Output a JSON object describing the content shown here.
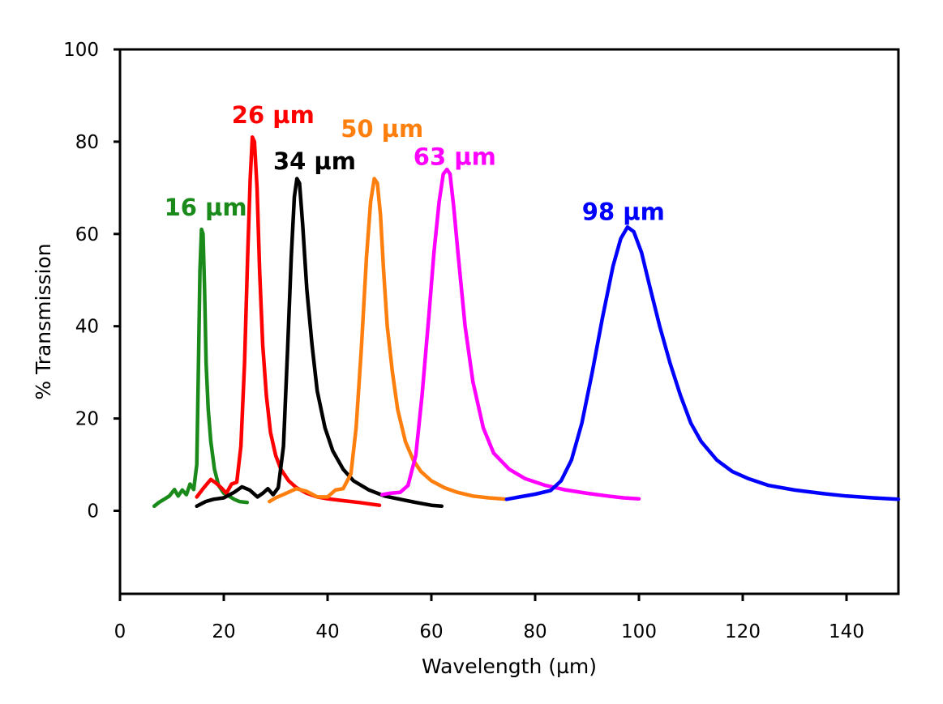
{
  "chart_data": {
    "type": "line",
    "title": "",
    "xlabel": "Wavelength (µm)",
    "ylabel": "% Transmission",
    "xlim": [
      0,
      150
    ],
    "ylim": [
      -18,
      100
    ],
    "xticks": [
      0,
      20,
      40,
      60,
      80,
      100,
      120,
      140
    ],
    "yticks": [
      0,
      20,
      40,
      60,
      80,
      100
    ],
    "grid": false,
    "legend": "none",
    "series": [
      {
        "name": "16 µm",
        "label": "16 µm",
        "color": "#1a8a1a",
        "label_at": [
          16.5,
          64
        ],
        "x": [
          6.6,
          7.5,
          8.5,
          9.5,
          10.5,
          11.2,
          12,
          12.8,
          13.5,
          14.2,
          14.8,
          15.1,
          15.4,
          15.7,
          16.0,
          16.3,
          16.6,
          17.0,
          17.5,
          18.2,
          19.0,
          20.0,
          21.0,
          22.0,
          23.0,
          24.5
        ],
        "y": [
          1.0,
          1.8,
          2.5,
          3.2,
          4.6,
          3.2,
          4.5,
          3.5,
          5.8,
          4.6,
          10,
          30,
          52,
          61,
          60,
          48,
          32,
          22,
          15,
          9,
          5.5,
          3.8,
          3.2,
          2.5,
          2.0,
          1.8
        ]
      },
      {
        "name": "26 µm",
        "label": "26 µm",
        "color": "#ff0000",
        "label_at": [
          29.5,
          84
        ],
        "x": [
          14.8,
          16,
          17.5,
          18.5,
          19.5,
          20.5,
          21.5,
          22.5,
          23.3,
          24.0,
          24.6,
          25.1,
          25.5,
          25.9,
          26.4,
          26.9,
          27.5,
          28.2,
          29.0,
          30.0,
          31.0,
          32.5,
          34,
          36,
          38,
          40,
          43,
          46,
          50
        ],
        "y": [
          3.0,
          4.8,
          6.8,
          6.0,
          5.0,
          3.8,
          5.8,
          6.2,
          14,
          32,
          55,
          72,
          81,
          80,
          70,
          52,
          36,
          25,
          17,
          12,
          9,
          6.5,
          5,
          3.8,
          3.0,
          2.6,
          2.2,
          1.8,
          1.2
        ]
      },
      {
        "name": "34 µm",
        "label": "34 µm",
        "color": "#000000",
        "label_at": [
          37.5,
          74
        ],
        "x": [
          14.8,
          16.5,
          18,
          20,
          22,
          23.5,
          25,
          26.5,
          27.5,
          28.5,
          29.5,
          30.5,
          31.5,
          32.3,
          33.0,
          33.6,
          34.1,
          34.6,
          35.2,
          36.0,
          37.0,
          38.0,
          39.5,
          41,
          43,
          45,
          48,
          51,
          54,
          57,
          60,
          62
        ],
        "y": [
          1.0,
          2.0,
          2.5,
          2.8,
          4.0,
          5.2,
          4.5,
          3.0,
          3.8,
          4.8,
          3.5,
          5.0,
          14,
          35,
          55,
          68,
          72,
          71,
          62,
          48,
          36,
          26,
          18,
          13,
          9,
          6.5,
          4.5,
          3.2,
          2.5,
          1.8,
          1.2,
          1.0
        ]
      },
      {
        "name": "50 µm",
        "label": "50 µm",
        "color": "#ff7f0e",
        "label_at": [
          50.5,
          81
        ],
        "x": [
          28.8,
          30,
          32,
          34,
          36,
          38,
          40,
          41.5,
          43,
          44.5,
          45.5,
          46.5,
          47.5,
          48.3,
          49.0,
          49.6,
          50.2,
          50.8,
          51.5,
          52.5,
          53.5,
          55,
          56.5,
          58,
          60,
          62.5,
          65,
          68,
          71,
          74.5
        ],
        "y": [
          2.0,
          2.8,
          3.8,
          4.8,
          4.2,
          3.0,
          3.0,
          4.5,
          4.8,
          8,
          18,
          35,
          55,
          67,
          72,
          71,
          64,
          52,
          40,
          30,
          22,
          15,
          11,
          8.5,
          6.5,
          5.0,
          4.0,
          3.2,
          2.8,
          2.5
        ]
      },
      {
        "name": "63 µm",
        "label": "63 µm",
        "color": "#ff00ff",
        "label_at": [
          64.5,
          75
        ],
        "x": [
          50.5,
          52,
          54,
          55.5,
          57,
          58.2,
          59.5,
          60.5,
          61.5,
          62.3,
          63.0,
          63.6,
          64.3,
          65.2,
          66.5,
          68,
          70,
          72,
          75,
          78,
          82,
          86,
          90,
          94,
          97,
          100
        ],
        "y": [
          3.5,
          3.8,
          4.0,
          5.5,
          12,
          25,
          42,
          56,
          67,
          73,
          74,
          73,
          66,
          55,
          40,
          28,
          18,
          12.5,
          9,
          7,
          5.5,
          4.5,
          3.8,
          3.2,
          2.8,
          2.6
        ]
      },
      {
        "name": "98 µm",
        "label": "98 µm",
        "color": "#0000ff",
        "label_at": [
          97,
          63
        ],
        "x": [
          74.5,
          77,
          80,
          83,
          85,
          87,
          89,
          91,
          93,
          95,
          96.5,
          97.8,
          99,
          100.5,
          102,
          104,
          106,
          108,
          110,
          112,
          115,
          118,
          121,
          125,
          130,
          135,
          140,
          145,
          150
        ],
        "y": [
          2.5,
          3.0,
          3.6,
          4.4,
          6.5,
          11,
          19,
          30,
          42,
          53,
          59,
          61.5,
          60.5,
          56,
          49,
          40,
          32,
          25,
          19,
          15,
          11,
          8.5,
          7,
          5.5,
          4.5,
          3.8,
          3.2,
          2.8,
          2.5
        ]
      }
    ]
  }
}
